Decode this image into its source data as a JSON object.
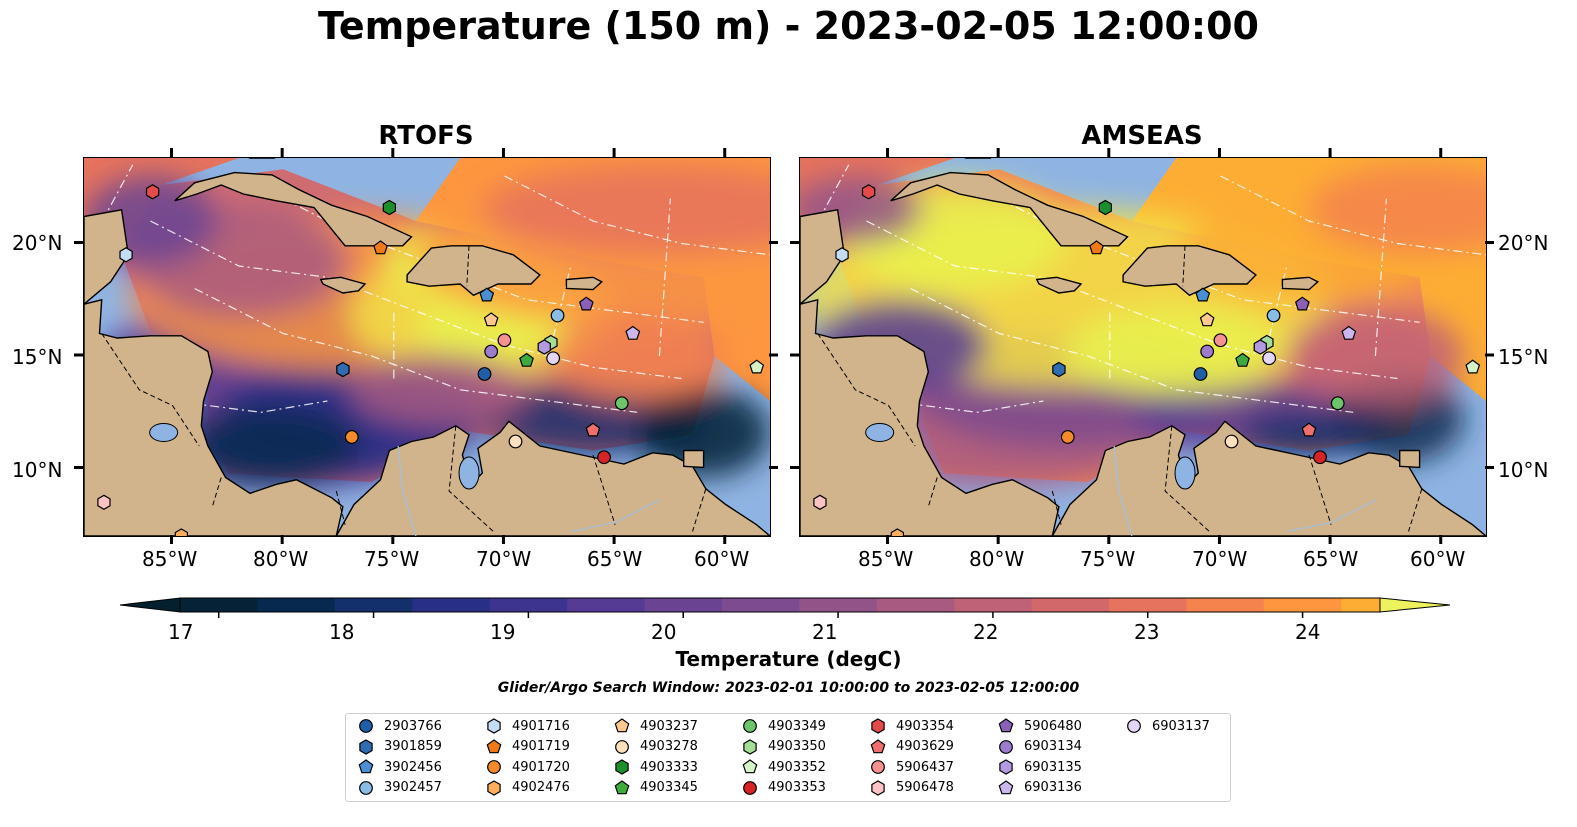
{
  "title": "Temperature (150 m) - 2023-02-05 12:00:00",
  "panels": [
    {
      "title": "RTOFS"
    },
    {
      "title": "AMSEAS"
    }
  ],
  "axes": {
    "x_ticks": [
      "85°W",
      "80°W",
      "75°W",
      "70°W",
      "65°W",
      "60°W"
    ],
    "y_ticks": [
      "20°N",
      "15°N",
      "10°N"
    ]
  },
  "colorbar": {
    "label": "Temperature (degC)",
    "ticks": [
      "17",
      "18",
      "19",
      "20",
      "21",
      "22",
      "23",
      "24"
    ],
    "min": 16.75,
    "max": 24.5,
    "step": 0.5,
    "extend": "both",
    "colors": [
      "#052236",
      "#08294f",
      "#14306c",
      "#272f86",
      "#3d3490",
      "#553b94",
      "#6a4493",
      "#7d4b8f",
      "#925389",
      "#a95a81",
      "#bf6177",
      "#d3686b",
      "#e6735d",
      "#f5834d",
      "#fd963f",
      "#fdad34",
      "#f9c836",
      "#f3e245",
      "#e9f24f"
    ],
    "under_color": "#04202f",
    "over_color": "#eef25c"
  },
  "search_window": "Glider/Argo Search Window: 2023-02-01 10:00:00 to 2023-02-05 12:00:00",
  "legend": [
    {
      "id": "2903766",
      "marker": "circle",
      "color": "#1f5fa8"
    },
    {
      "id": "3901859",
      "marker": "hexagon",
      "color": "#2f6cb2"
    },
    {
      "id": "3902456",
      "marker": "pentagon",
      "color": "#4a8fd3"
    },
    {
      "id": "3902457",
      "marker": "circle",
      "color": "#8bbce6"
    },
    {
      "id": "4901716",
      "marker": "hexagon",
      "color": "#c4dcf4"
    },
    {
      "id": "4901719",
      "marker": "pentagon",
      "color": "#f07a18"
    },
    {
      "id": "4901720",
      "marker": "circle",
      "color": "#f58a2a"
    },
    {
      "id": "4902476",
      "marker": "hexagon",
      "color": "#fbae5c"
    },
    {
      "id": "4903237",
      "marker": "pentagon",
      "color": "#fdc98e"
    },
    {
      "id": "4903278",
      "marker": "circle",
      "color": "#fde0bd"
    },
    {
      "id": "4903333",
      "marker": "hexagon",
      "color": "#1c8f2c"
    },
    {
      "id": "4903345",
      "marker": "pentagon",
      "color": "#3dab3d"
    },
    {
      "id": "4903349",
      "marker": "circle",
      "color": "#6cc56a"
    },
    {
      "id": "4903350",
      "marker": "hexagon",
      "color": "#a5dd95"
    },
    {
      "id": "4903352",
      "marker": "pentagon",
      "color": "#d6f2c7"
    },
    {
      "id": "4903353",
      "marker": "circle",
      "color": "#d62326"
    },
    {
      "id": "4903354",
      "marker": "hexagon",
      "color": "#e34a4b"
    },
    {
      "id": "4903629",
      "marker": "pentagon",
      "color": "#ef6f6f"
    },
    {
      "id": "5906437",
      "marker": "circle",
      "color": "#f79292"
    },
    {
      "id": "5906478",
      "marker": "hexagon",
      "color": "#fbc3c3"
    },
    {
      "id": "5906480",
      "marker": "pentagon",
      "color": "#8a60b8"
    },
    {
      "id": "6903134",
      "marker": "circle",
      "color": "#9d7ccd"
    },
    {
      "id": "6903135",
      "marker": "hexagon",
      "color": "#b39ae0"
    },
    {
      "id": "6903136",
      "marker": "pentagon",
      "color": "#cbb7ee"
    },
    {
      "id": "6903137",
      "marker": "circle",
      "color": "#e4d6f7"
    }
  ],
  "map_colors": {
    "land": "#d2b48c",
    "ocean": "#8fb4e3",
    "coast": "#000000",
    "isobath": "#ffffff"
  },
  "floats": [
    {
      "id": "2903766",
      "lon": -70.9,
      "lat": 14.2
    },
    {
      "id": "3901859",
      "lon": -77.3,
      "lat": 14.4
    },
    {
      "id": "3902456",
      "lon": -70.8,
      "lat": 17.7
    },
    {
      "id": "3902457",
      "lon": -67.6,
      "lat": 16.8
    },
    {
      "id": "4901716",
      "lon": -87.1,
      "lat": 19.5
    },
    {
      "id": "4901719",
      "lon": -75.6,
      "lat": 19.8
    },
    {
      "id": "4901720",
      "lon": -76.9,
      "lat": 11.4
    },
    {
      "id": "4902476",
      "lon": -84.6,
      "lat": 7.0
    },
    {
      "id": "4903237",
      "lon": -70.6,
      "lat": 16.6
    },
    {
      "id": "4903278",
      "lon": -69.5,
      "lat": 11.2
    },
    {
      "id": "4903333",
      "lon": -75.2,
      "lat": 21.6
    },
    {
      "id": "4903345",
      "lon": -69.0,
      "lat": 14.8
    },
    {
      "id": "4903349",
      "lon": -64.7,
      "lat": 12.9
    },
    {
      "id": "4903350",
      "lon": -67.9,
      "lat": 15.6
    },
    {
      "id": "4903352",
      "lon": -58.6,
      "lat": 14.5
    },
    {
      "id": "4903353",
      "lon": -65.5,
      "lat": 10.5
    },
    {
      "id": "4903354",
      "lon": -85.9,
      "lat": 22.3
    },
    {
      "id": "4903629",
      "lon": -66.0,
      "lat": 11.7
    },
    {
      "id": "5906437",
      "lon": -70.0,
      "lat": 15.7
    },
    {
      "id": "5906478",
      "lon": -88.1,
      "lat": 8.5
    },
    {
      "id": "5906480",
      "lon": -66.3,
      "lat": 17.3
    },
    {
      "id": "6903134",
      "lon": -70.6,
      "lat": 15.2
    },
    {
      "id": "6903135",
      "lon": -68.2,
      "lat": 15.4
    },
    {
      "id": "6903136",
      "lon": -64.2,
      "lat": 16.0
    },
    {
      "id": "6903137",
      "lon": -67.8,
      "lat": 14.9
    }
  ]
}
